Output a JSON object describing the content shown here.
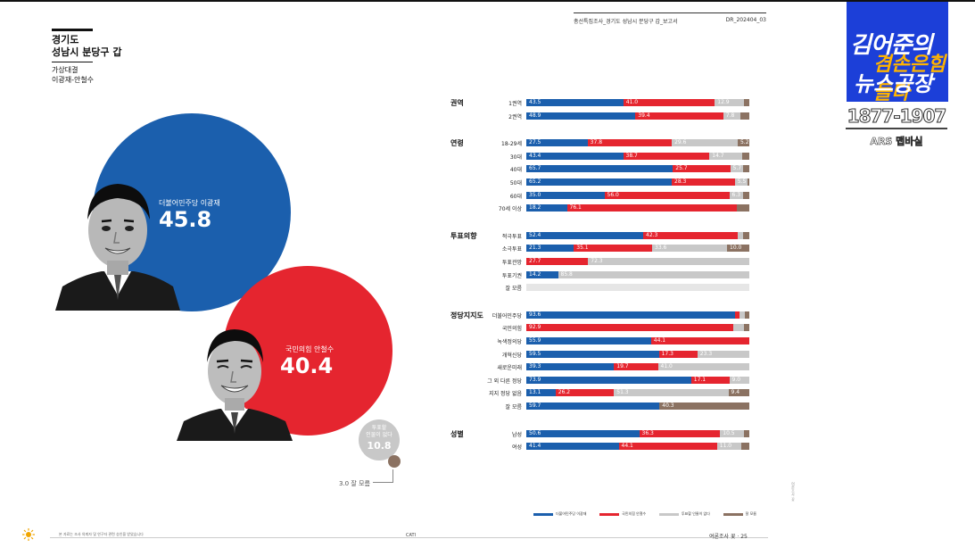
{
  "header": {
    "report_title": "총선특집조사_경기도 성남시 분당구 갑_보고서",
    "report_code": "DR_202404_03"
  },
  "region": {
    "line1": "경기도",
    "line2": "성남시 분당구 갑",
    "matchup_title": "가상대결",
    "matchup_names": "이광재-안철수"
  },
  "bubbles": {
    "lee": {
      "label": "더불어민주당 이광재",
      "value": "45.8"
    },
    "ahn": {
      "label": "국민의힘 안철수",
      "value": "40.4"
    },
    "none": {
      "label_line1": "투표할",
      "label_line2": "인물이 없다",
      "value": "10.8"
    },
    "dontknow": {
      "label": "3.0 잘 모름"
    }
  },
  "colors": {
    "lee": "#1b5fad",
    "ahn": "#e5252f",
    "none": "#c8c8c8",
    "dontknow": "#8b7262",
    "logo_blue": "#1c3fd8",
    "logo_yellow": "#ffb400"
  },
  "legend": [
    {
      "label": "더불어민주당 이광재",
      "color": "#1b5fad"
    },
    {
      "label": "국민의힘 안철수",
      "color": "#e5252f"
    },
    {
      "label": "투표할 인물이 없다",
      "color": "#c8c8c8"
    },
    {
      "label": "잘 모름",
      "color": "#8b7262"
    }
  ],
  "footer": {
    "left": "본 자료는 조사 의뢰자 및 연구자 관련 승인을 받았습니다",
    "center": "CATI",
    "right": "여론조사 꽃 · 25"
  },
  "side_note": "여론조사 꽃",
  "logo": {
    "line1": "김어준의",
    "line2": "겸손은힘들다",
    "line3": "뉴스공장",
    "small": "겸손은",
    "phone": "1877-1907",
    "ars": "ARS 맵바실"
  },
  "chart_data": {
    "type": "bar",
    "stacked": true,
    "orientation": "horizontal",
    "xlim": [
      0,
      100
    ],
    "series_names": [
      "더불어민주당 이광재",
      "국민의힘 안철수",
      "투표할 인물이 없다",
      "잘 모름"
    ],
    "groups": [
      {
        "label": "권역",
        "rows": [
          {
            "label": "1권역",
            "values": [
              43.5,
              41.0,
              12.9,
              2.6
            ],
            "labels": [
              "43.5",
              "41.0",
              "12.9",
              ""
            ]
          },
          {
            "label": "2권역",
            "values": [
              48.9,
              39.4,
              7.8,
              3.9
            ],
            "labels": [
              "48.9",
              "39.4",
              "7.8",
              ""
            ]
          }
        ]
      },
      {
        "label": "연령",
        "rows": [
          {
            "label": "18-29세",
            "values": [
              27.5,
              37.8,
              29.6,
              5.2
            ],
            "labels": [
              "27.5",
              "37.8",
              "29.6",
              "5.2"
            ]
          },
          {
            "label": "30대",
            "values": [
              43.4,
              38.7,
              14.7,
              3.2
            ],
            "labels": [
              "43.4",
              "38.7",
              "14.7",
              ""
            ]
          },
          {
            "label": "40대",
            "values": [
              65.7,
              25.7,
              5.7,
              2.9
            ],
            "labels": [
              "65.7",
              "25.7",
              "5.7",
              ""
            ]
          },
          {
            "label": "50대",
            "values": [
              65.2,
              28.3,
              5.5,
              1.0
            ],
            "labels": [
              "65.2",
              "28.3",
              "5.5",
              ""
            ]
          },
          {
            "label": "60대",
            "values": [
              35.0,
              56.0,
              6.3,
              2.7
            ],
            "labels": [
              "35.0",
              "56.0",
              "6.3",
              ""
            ]
          },
          {
            "label": "70세 이상",
            "values": [
              18.2,
              76.1,
              0.0,
              5.7
            ],
            "labels": [
              "18.2",
              "76.1",
              "",
              ""
            ]
          }
        ]
      },
      {
        "label": "투표의향",
        "rows": [
          {
            "label": "적극투표",
            "values": [
              52.4,
              42.3,
              2.6,
              2.7
            ],
            "labels": [
              "52.4",
              "42.3",
              "",
              ""
            ]
          },
          {
            "label": "소극투표",
            "values": [
              21.3,
              35.1,
              33.6,
              10.0
            ],
            "labels": [
              "21.3",
              "35.1",
              "33.6",
              "10.0"
            ]
          },
          {
            "label": "투표관망",
            "values": [
              0.0,
              27.7,
              72.3,
              0.0
            ],
            "labels": [
              "",
              "27.7",
              "72.3",
              ""
            ]
          },
          {
            "label": "투표기권",
            "values": [
              14.2,
              0.0,
              85.8,
              0.0
            ],
            "labels": [
              "14.2",
              "",
              "85.8",
              ""
            ]
          },
          {
            "label": "잘 모름",
            "values": [
              0.0,
              0.0,
              0.0,
              100.0
            ],
            "labels": [
              "",
              "",
              "",
              ""
            ],
            "faded": true
          }
        ]
      },
      {
        "label": "정당지지도",
        "rows": [
          {
            "label": "더불어민주당",
            "values": [
              93.6,
              2.0,
              2.5,
              1.9
            ],
            "labels": [
              "93.6",
              "",
              "",
              ""
            ]
          },
          {
            "label": "국민의힘",
            "values": [
              0.0,
              92.9,
              4.6,
              2.5
            ],
            "labels": [
              "",
              "92.9",
              "",
              ""
            ]
          },
          {
            "label": "녹색정의당",
            "values": [
              55.9,
              44.1,
              0.0,
              0.0
            ],
            "labels": [
              "55.9",
              "44.1",
              "",
              ""
            ]
          },
          {
            "label": "개혁신당",
            "values": [
              59.5,
              17.3,
              23.3,
              0.0
            ],
            "labels": [
              "59.5",
              "17.3",
              "23.3",
              ""
            ]
          },
          {
            "label": "새로운미래",
            "values": [
              39.3,
              19.7,
              41.0,
              0.0
            ],
            "labels": [
              "39.3",
              "19.7",
              "41.0",
              ""
            ]
          },
          {
            "label": "그 외 다른 정당",
            "values": [
              73.9,
              17.1,
              9.0,
              0.0
            ],
            "labels": [
              "73.9",
              "17.1",
              "9.0",
              ""
            ]
          },
          {
            "label": "지지 정당 없음",
            "values": [
              13.1,
              26.2,
              51.3,
              9.4
            ],
            "labels": [
              "13.1",
              "26.2",
              "51.3",
              "9.4"
            ]
          },
          {
            "label": "잘 모름",
            "values": [
              59.7,
              0.0,
              0.0,
              40.3
            ],
            "labels": [
              "59.7",
              "",
              "",
              "40.3"
            ]
          }
        ]
      },
      {
        "label": "성별",
        "rows": [
          {
            "label": "남성",
            "values": [
              50.6,
              36.3,
              10.5,
              2.6
            ],
            "labels": [
              "50.6",
              "36.3",
              "10.5",
              ""
            ]
          },
          {
            "label": "여성",
            "values": [
              41.4,
              44.1,
              11.0,
              3.5
            ],
            "labels": [
              "41.4",
              "44.1",
              "11.0",
              ""
            ]
          }
        ]
      }
    ]
  }
}
